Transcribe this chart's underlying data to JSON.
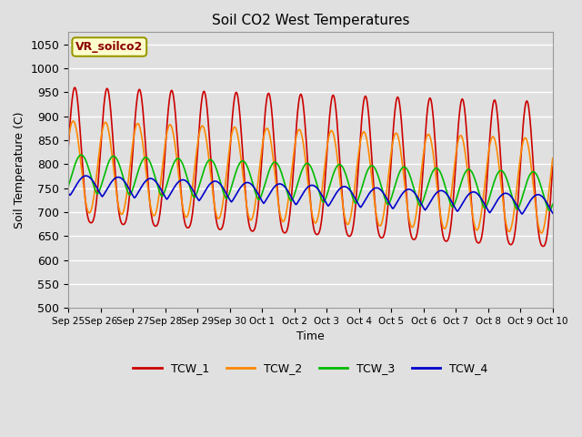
{
  "title": "Soil CO2 West Temperatures",
  "xlabel": "Time",
  "ylabel": "Soil Temperature (C)",
  "ylim": [
    500,
    1075
  ],
  "yticks": [
    500,
    550,
    600,
    650,
    700,
    750,
    800,
    850,
    900,
    950,
    1000,
    1050
  ],
  "legend_label": "VR_soilco2",
  "series_labels": [
    "TCW_1",
    "TCW_2",
    "TCW_3",
    "TCW_4"
  ],
  "colors": [
    "#cc0000",
    "#ff8800",
    "#00bb00",
    "#0000cc"
  ],
  "fig_bg": "#e0e0e0",
  "plot_bg": "#e0e0e0",
  "grid_color": "#ffffff",
  "x_tick_labels": [
    "Sep 25",
    "Sep 26",
    "Sep 27",
    "Sep 28",
    "Sep 29",
    "Sep 30",
    "Oct 1",
    "Oct 2",
    "Oct 3",
    "Oct 4",
    "Oct 5",
    "Oct 6",
    "Oct 7",
    "Oct 8",
    "Oct 9",
    "Oct 10"
  ],
  "num_points": 1000
}
